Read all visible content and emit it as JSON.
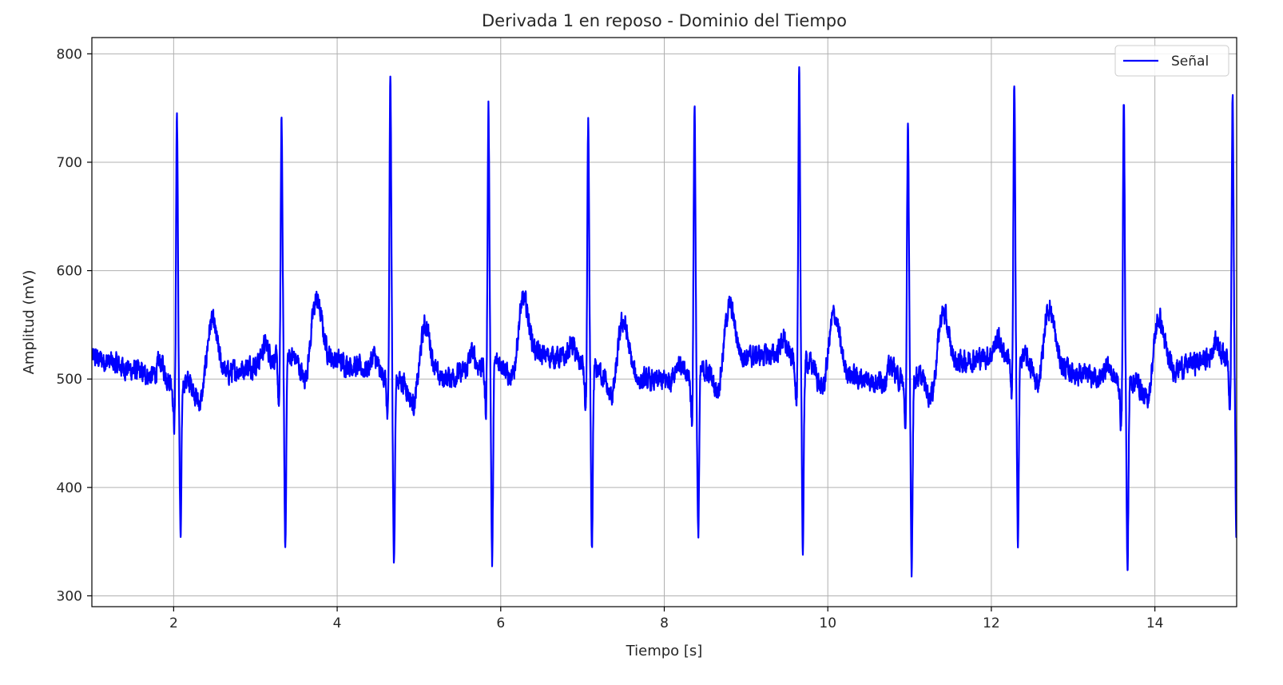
{
  "chart_data": {
    "type": "line",
    "title": "Derivada 1 en reposo - Dominio del Tiempo",
    "xlabel": "Tiempo [s]",
    "ylabel": "Amplitud (mV)",
    "xlim": [
      1.0,
      15.0
    ],
    "ylim": [
      290,
      815
    ],
    "xticks": [
      2,
      4,
      6,
      8,
      10,
      12,
      14
    ],
    "yticks": [
      300,
      400,
      500,
      600,
      700,
      800
    ],
    "grid": true,
    "legend_position": "top-right",
    "series": [
      {
        "name": "Señal",
        "color": "#0000ff",
        "baseline": 510,
        "beats": [
          {
            "t": 2.04,
            "r": 760,
            "s": 365
          },
          {
            "t": 3.32,
            "r": 732,
            "s": 335
          },
          {
            "t": 4.65,
            "r": 790,
            "s": 343
          },
          {
            "t": 5.85,
            "r": 748,
            "s": 325
          },
          {
            "t": 7.07,
            "r": 735,
            "s": 333
          },
          {
            "t": 8.37,
            "r": 764,
            "s": 358
          },
          {
            "t": 9.65,
            "r": 773,
            "s": 335
          },
          {
            "t": 10.98,
            "r": 755,
            "s": 335
          },
          {
            "t": 12.28,
            "r": 760,
            "s": 338
          },
          {
            "t": 13.62,
            "r": 770,
            "s": 333
          },
          {
            "t": 14.95,
            "r": 753,
            "s": 348
          }
        ]
      }
    ]
  }
}
